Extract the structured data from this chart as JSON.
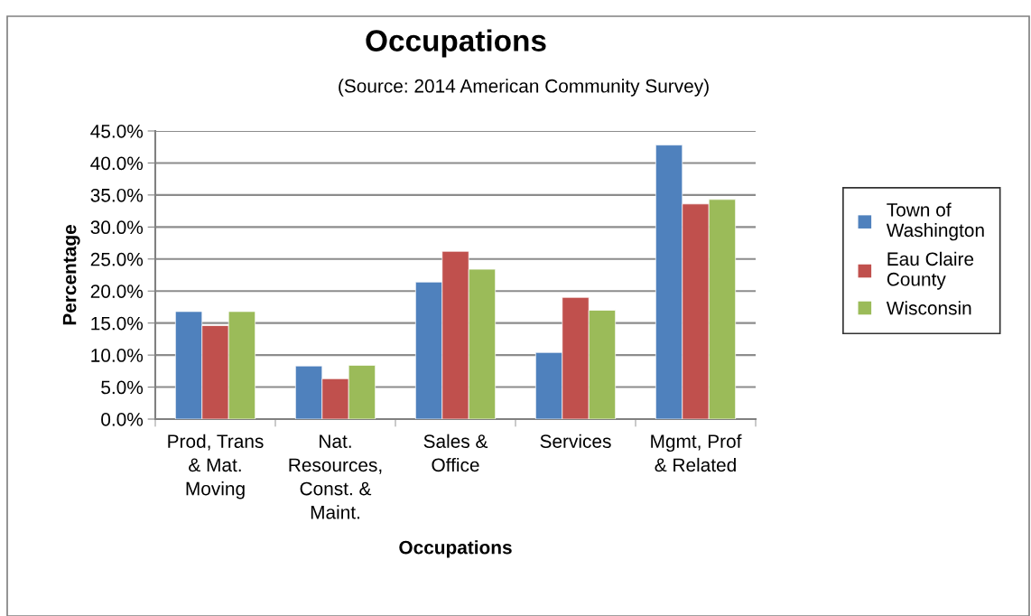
{
  "chart_data": {
    "type": "bar",
    "title": "Occupations",
    "subtitle": "(Source: 2014 American Community Survey)",
    "xlabel": "Occupations",
    "ylabel": "Percentage",
    "categories": [
      "Prod, Trans\n& Mat.\nMoving",
      "Nat.\nResources,\nConst. &\nMaint.",
      "Sales &\nOffice",
      "Services",
      "Mgmt, Prof\n& Related"
    ],
    "series": [
      {
        "name": "Town of\nWashington",
        "color": "#4f81bd",
        "values": [
          16.8,
          8.3,
          21.4,
          10.4,
          42.8
        ]
      },
      {
        "name": "Eau Claire\nCounty",
        "color": "#c0504d",
        "values": [
          14.6,
          6.3,
          26.2,
          19.0,
          33.6
        ]
      },
      {
        "name": "Wisconsin",
        "color": "#9bbb59",
        "values": [
          16.8,
          8.4,
          23.4,
          17.0,
          34.3
        ]
      }
    ],
    "ylim": [
      0,
      45
    ],
    "yticks": [
      {
        "value": 0,
        "label": "0.0%"
      },
      {
        "value": 5,
        "label": "5.0%"
      },
      {
        "value": 10,
        "label": "10.0%"
      },
      {
        "value": 15,
        "label": "15.0%"
      },
      {
        "value": 20,
        "label": "20.0%"
      },
      {
        "value": 25,
        "label": "25.0%"
      },
      {
        "value": 30,
        "label": "30.0%"
      },
      {
        "value": 35,
        "label": "35.0%"
      },
      {
        "value": 40,
        "label": "40.0%"
      },
      {
        "value": 45,
        "label": "45.0%"
      }
    ],
    "grid": "y",
    "legend": "right"
  }
}
